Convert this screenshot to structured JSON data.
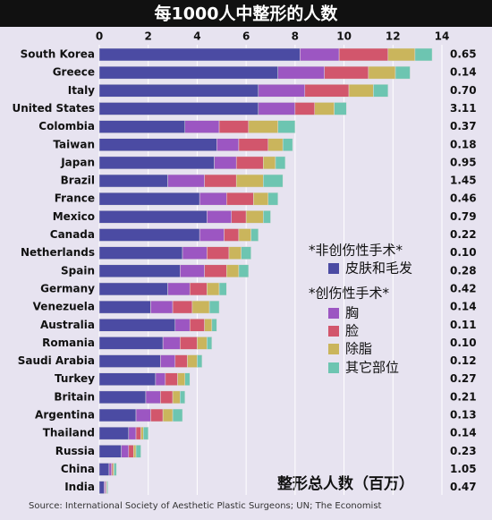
{
  "chart_data": {
    "type": "stacked-bar-horizontal",
    "title": "每1000人中整形的人数",
    "categories": [
      "South Korea",
      "Greece",
      "Italy",
      "United States",
      "Colombia",
      "Taiwan",
      "Japan",
      "Brazil",
      "France",
      "Mexico",
      "Canada",
      "Netherlands",
      "Spain",
      "Germany",
      "Venezuela",
      "Australia",
      "Romania",
      "Saudi Arabia",
      "Turkey",
      "Britain",
      "Argentina",
      "Thailand",
      "Russia",
      "China",
      "India"
    ],
    "series": [
      {
        "name": "皮肤和毛发",
        "color": "#4b4ba3",
        "values": [
          8.2,
          7.3,
          6.5,
          6.5,
          3.5,
          4.8,
          4.7,
          2.8,
          4.1,
          4.4,
          4.1,
          3.4,
          3.3,
          2.8,
          2.1,
          3.1,
          2.6,
          2.5,
          2.3,
          1.9,
          1.5,
          1.2,
          0.9,
          0.4,
          0.2
        ]
      },
      {
        "name": "胸",
        "color": "#9c56c2",
        "values": [
          1.6,
          1.9,
          1.9,
          1.5,
          1.4,
          0.9,
          0.9,
          1.5,
          1.1,
          1.0,
          1.0,
          1.0,
          1.0,
          0.9,
          0.9,
          0.6,
          0.7,
          0.6,
          0.4,
          0.6,
          0.6,
          0.3,
          0.3,
          0.1,
          0.05
        ]
      },
      {
        "name": "脸",
        "color": "#d2566c",
        "values": [
          2.0,
          1.8,
          1.8,
          0.8,
          1.2,
          1.2,
          1.1,
          1.3,
          1.1,
          0.6,
          0.6,
          0.9,
          0.9,
          0.7,
          0.8,
          0.6,
          0.7,
          0.5,
          0.5,
          0.5,
          0.5,
          0.2,
          0.2,
          0.05,
          0.03
        ]
      },
      {
        "name": "除脂",
        "color": "#cab55c",
        "values": [
          1.1,
          1.1,
          1.0,
          0.8,
          1.2,
          0.6,
          0.5,
          1.1,
          0.6,
          0.7,
          0.5,
          0.5,
          0.5,
          0.5,
          0.7,
          0.3,
          0.4,
          0.4,
          0.3,
          0.3,
          0.4,
          0.1,
          0.1,
          0.05,
          0.03
        ]
      },
      {
        "name": "其它部位",
        "color": "#6dc5b1",
        "values": [
          0.7,
          0.6,
          0.6,
          0.5,
          0.7,
          0.4,
          0.4,
          0.8,
          0.4,
          0.3,
          0.3,
          0.4,
          0.4,
          0.3,
          0.4,
          0.2,
          0.2,
          0.2,
          0.2,
          0.2,
          0.4,
          0.2,
          0.2,
          0.1,
          0.04
        ]
      }
    ],
    "legend_headings": [
      "*非创伤性手术*",
      "*创伤性手术*"
    ],
    "totals": {
      "label": "整形总人数（百万）",
      "values": [
        0.65,
        0.14,
        0.7,
        3.11,
        0.37,
        0.18,
        0.95,
        1.45,
        0.46,
        0.79,
        0.22,
        0.1,
        0.28,
        0.42,
        0.14,
        0.11,
        0.1,
        0.12,
        0.27,
        0.21,
        0.13,
        0.14,
        0.23,
        1.05,
        0.47
      ],
      "value_labels": [
        "0.65",
        "0.14",
        "0.70",
        "3.11",
        "0.37",
        "0.18",
        "0.95",
        "1.45",
        "0.46",
        "0.79",
        "0.22",
        "0.10",
        "0.28",
        "0.42",
        "0.14",
        "0.11",
        "0.10",
        "0.12",
        "0.27",
        "0.21",
        "0.13",
        "0.14",
        "0.23",
        "1.05",
        "0.47"
      ]
    },
    "xlim": [
      0,
      14
    ],
    "xticks": [
      0,
      2,
      4,
      6,
      8,
      10,
      12,
      14
    ],
    "grid": true,
    "source": "Source: International Society of Aesthetic Plastic Surgeons; UN; The Economist"
  }
}
